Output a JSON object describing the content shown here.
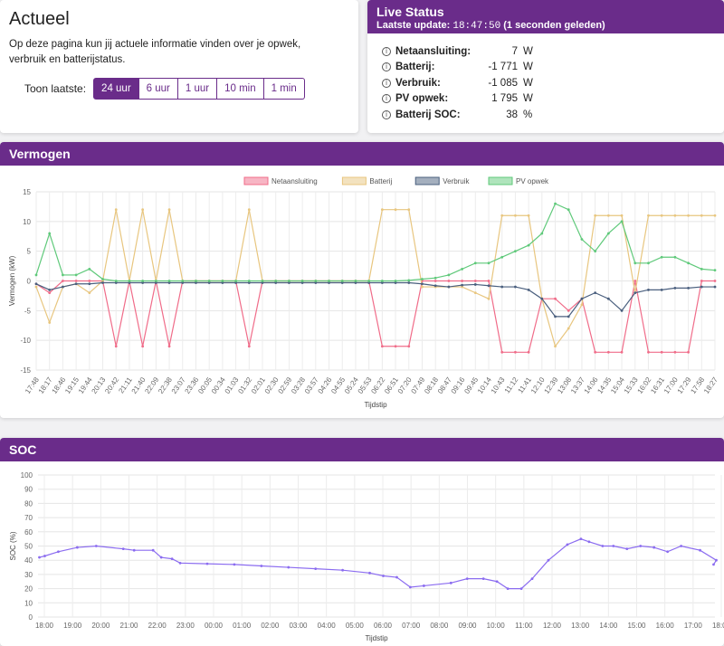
{
  "actueel": {
    "title": "Actueel",
    "description": "Op deze pagina kun jij actuele informatie vinden over je opwek, verbruik en batterijstatus.",
    "toon_label": "Toon laatste:",
    "buttons": [
      "24 uur",
      "6 uur",
      "1 uur",
      "10 min",
      "1 min"
    ],
    "active": "24 uur"
  },
  "live": {
    "title": "Live Status",
    "update_label": "Laatste update:",
    "update_time": "18:47:50",
    "update_ago": "(1 seconden geleden)",
    "rows": [
      {
        "key": "Netaansluiting:",
        "value": "7",
        "unit": "W"
      },
      {
        "key": "Batterij:",
        "value": "-1 771",
        "unit": "W"
      },
      {
        "key": "Verbruik:",
        "value": "-1 085",
        "unit": "W"
      },
      {
        "key": "PV opwek:",
        "value": "1 795",
        "unit": "W"
      },
      {
        "key": "Batterij SOC:",
        "value": "38",
        "unit": "%"
      }
    ]
  },
  "chart_data": [
    {
      "type": "line",
      "title": "Vermogen",
      "xlabel": "Tijdstip",
      "ylabel": "Vermogen (kW)",
      "ylim": [
        -15,
        15
      ],
      "yticks": [
        -15,
        -10,
        -5,
        0,
        5,
        10,
        15
      ],
      "grid": true,
      "legend": "top",
      "categories": [
        "17:48",
        "18:17",
        "18:46",
        "19:15",
        "19:44",
        "20:13",
        "20:42",
        "21:11",
        "21:40",
        "22:09",
        "22:38",
        "23:07",
        "23:36",
        "00:05",
        "00:34",
        "01:03",
        "01:32",
        "02:01",
        "02:30",
        "02:59",
        "03:28",
        "03:57",
        "04:26",
        "04:55",
        "05:24",
        "05:53",
        "06:22",
        "06:51",
        "07:20",
        "07:49",
        "08:18",
        "08:47",
        "09:16",
        "09:45",
        "10:14",
        "10:43",
        "11:12",
        "11:41",
        "12:10",
        "12:39",
        "13:08",
        "13:37",
        "14:06",
        "14:35",
        "15:04",
        "15:33",
        "16:02",
        "16:31",
        "17:00",
        "17:29",
        "17:58",
        "18:27"
      ],
      "series": [
        {
          "name": "Netaansluiting",
          "color": "#f06c89",
          "values": [
            -0.5,
            -2,
            0,
            0,
            0,
            0,
            -11,
            0,
            -11,
            0,
            -11,
            0,
            0,
            0,
            0,
            0,
            -11,
            0,
            0,
            0,
            0,
            0,
            0,
            0,
            0,
            0,
            -11,
            -11,
            -11,
            0,
            0,
            0,
            0,
            0,
            0,
            -12,
            -12,
            -12,
            -3,
            -3,
            -5,
            -3,
            -12,
            -12,
            -12,
            0,
            -12,
            -12,
            -12,
            -12,
            0,
            0
          ]
        },
        {
          "name": "Batterij",
          "color": "#e8c67f",
          "values": [
            -1,
            -7,
            -1,
            -0.5,
            -2,
            0,
            12,
            0,
            12,
            0,
            12,
            0,
            0,
            0,
            0,
            0,
            12,
            0,
            0,
            0,
            0,
            0,
            0,
            0,
            0,
            0,
            12,
            12,
            12,
            -1,
            -1,
            -1,
            -1,
            -2,
            -3,
            11,
            11,
            11,
            -3,
            -11,
            -8,
            -4,
            11,
            11,
            11,
            -2,
            11,
            11,
            11,
            11,
            11,
            11
          ]
        },
        {
          "name": "Verbruik",
          "color": "#4a5f7e",
          "values": [
            -0.5,
            -1.5,
            -1,
            -0.5,
            -0.5,
            -0.3,
            -0.3,
            -0.3,
            -0.3,
            -0.3,
            -0.3,
            -0.3,
            -0.3,
            -0.3,
            -0.3,
            -0.3,
            -0.3,
            -0.3,
            -0.3,
            -0.3,
            -0.3,
            -0.3,
            -0.3,
            -0.3,
            -0.3,
            -0.3,
            -0.3,
            -0.3,
            -0.3,
            -0.5,
            -0.8,
            -1,
            -0.7,
            -0.6,
            -0.8,
            -1,
            -1,
            -1.5,
            -3,
            -6,
            -6,
            -3,
            -2,
            -3,
            -5,
            -2,
            -1.5,
            -1.5,
            -1.2,
            -1.2,
            -1,
            -1
          ]
        },
        {
          "name": "PV opwek",
          "color": "#5fc97a",
          "values": [
            1,
            8,
            1,
            1,
            2,
            0.3,
            0,
            0,
            0,
            0,
            0,
            0,
            0,
            0,
            0,
            0,
            0,
            0,
            0,
            0,
            0,
            0,
            0,
            0,
            0,
            0,
            0,
            0,
            0.1,
            0.3,
            0.5,
            1,
            2,
            3,
            3,
            4,
            5,
            6,
            8,
            13,
            12,
            7,
            5,
            8,
            10,
            3,
            3,
            4,
            4,
            3,
            2,
            1.8
          ]
        }
      ]
    },
    {
      "type": "line",
      "title": "SOC",
      "xlabel": "Tijdstip",
      "ylabel": "SOC (%)",
      "ylim": [
        0,
        100
      ],
      "yticks": [
        0,
        10,
        20,
        30,
        40,
        50,
        60,
        70,
        80,
        90,
        100
      ],
      "grid": true,
      "categories": [
        "18:00",
        "19:00",
        "20:00",
        "21:00",
        "22:00",
        "23:00",
        "00:00",
        "01:00",
        "02:00",
        "03:00",
        "04:00",
        "05:00",
        "06:00",
        "07:00",
        "08:00",
        "09:00",
        "10:00",
        "11:00",
        "12:00",
        "13:00",
        "14:00",
        "15:00",
        "16:00",
        "17:00",
        "18:00"
      ],
      "series": [
        {
          "name": "SOC",
          "color": "#8b6cf0",
          "x": [
            17.8,
            18.0,
            18.5,
            19.2,
            19.9,
            20.9,
            21.3,
            22.0,
            22.3,
            22.7,
            23.0,
            24.0,
            25.0,
            26.0,
            27.0,
            28.0,
            29.0,
            30.0,
            30.5,
            31.0,
            31.5,
            32.0,
            33.0,
            33.6,
            34.2,
            34.7,
            35.1,
            35.6,
            36.0,
            36.6,
            37.3,
            37.8,
            38.1,
            38.6,
            39.0,
            39.5,
            40.0,
            40.5,
            41.0,
            41.5,
            42.2,
            42.8,
            42.7
          ],
          "values": [
            42,
            43,
            46,
            49,
            50,
            48,
            47,
            47,
            42,
            41,
            38,
            37.5,
            37,
            36,
            35,
            34,
            33,
            31,
            29,
            28,
            21,
            22,
            24,
            27,
            27,
            25,
            20,
            20,
            27,
            40,
            51,
            55,
            53,
            50,
            50,
            48,
            50,
            49,
            46,
            50,
            47,
            40,
            37
          ]
        }
      ]
    }
  ]
}
